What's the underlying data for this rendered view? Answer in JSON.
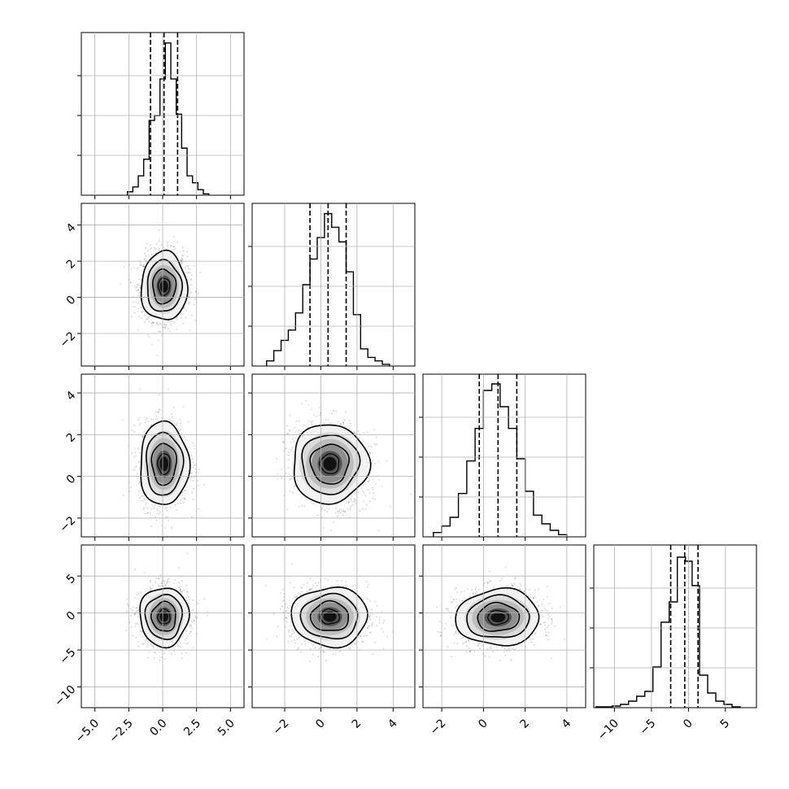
{
  "chart_data": {
    "type": "corner",
    "parameters": 4,
    "grid": true,
    "quantile_lines": "dashed",
    "contour_levels": 3,
    "scatter_color": "#000000",
    "parameter_ranges": [
      [
        -6,
        6
      ],
      [
        -3.8,
        5.2
      ],
      [
        -2.9,
        4.9
      ],
      [
        -12.8,
        9.2
      ]
    ],
    "x_ticks": [
      {
        "values": [
          -5,
          -2.5,
          0,
          2.5,
          5
        ],
        "labels": [
          "−5.0",
          "−2.5",
          "0.0",
          "2.5",
          "5.0"
        ]
      },
      {
        "values": [
          -2,
          0,
          2,
          4
        ],
        "labels": [
          "−2",
          "0",
          "2",
          "4"
        ]
      },
      {
        "values": [
          -2,
          0,
          2,
          4
        ],
        "labels": [
          "−2",
          "0",
          "2",
          "4"
        ]
      },
      {
        "values": [
          -10,
          -5,
          0,
          5
        ],
        "labels": [
          "−10",
          "−5",
          "0",
          "5"
        ]
      }
    ],
    "y_ticks": [
      null,
      {
        "values": [
          -2,
          0,
          2,
          4
        ],
        "labels": [
          "−2",
          "0",
          "2",
          "4"
        ]
      },
      {
        "values": [
          -2,
          0,
          2,
          4
        ],
        "labels": [
          "−2",
          "0",
          "2",
          "4"
        ]
      },
      {
        "values": [
          -10,
          -5,
          0,
          5
        ],
        "labels": [
          "−10",
          "−5",
          "0",
          "5"
        ]
      }
    ],
    "medians": [
      0.1,
      0.4,
      0.7,
      -0.5
    ],
    "quantiles_16_84": [
      [
        -0.9,
        1.1
      ],
      [
        -0.6,
        1.4
      ],
      [
        -0.2,
        1.6
      ],
      [
        -2.4,
        1.3
      ]
    ],
    "histograms": [
      {
        "edges": [
          -2.6,
          -2.2,
          -1.8,
          -1.4,
          -1.0,
          -0.6,
          -0.2,
          0.2,
          0.6,
          1.0,
          1.4,
          1.8,
          2.2,
          2.6,
          3.0,
          3.4
        ],
        "counts": [
          5,
          12,
          28,
          52,
          108,
          115,
          168,
          220,
          168,
          117,
          68,
          28,
          18,
          8,
          2
        ],
        "ymax": 235
      },
      {
        "edges": [
          -3.0,
          -2.6,
          -2.2,
          -1.8,
          -1.4,
          -1.0,
          -0.6,
          -0.2,
          0.2,
          0.6,
          1.0,
          1.4,
          1.8,
          2.2,
          2.6,
          3.0,
          3.4,
          3.8
        ],
        "counts": [
          6,
          18,
          30,
          42,
          62,
          95,
          125,
          150,
          178,
          162,
          145,
          110,
          60,
          20,
          10,
          6,
          2
        ],
        "ymax": 190
      },
      {
        "edges": [
          -2.4,
          -2.0,
          -1.6,
          -1.2,
          -0.8,
          -0.4,
          0.0,
          0.4,
          0.8,
          1.2,
          1.6,
          2.0,
          2.4,
          2.8,
          3.2,
          3.6,
          4.0
        ],
        "counts": [
          4,
          10,
          18,
          40,
          70,
          100,
          135,
          141,
          120,
          100,
          72,
          42,
          20,
          12,
          6,
          2
        ],
        "ymax": 150
      },
      {
        "edges": [
          -12.5,
          -11.4,
          -10.3,
          -9.2,
          -8.1,
          -7.0,
          -5.9,
          -4.8,
          -3.7,
          -2.6,
          -1.5,
          -0.4,
          0.5,
          1.5,
          2.6,
          3.7,
          4.8,
          5.9,
          7.0
        ],
        "counts": [
          1,
          1,
          2,
          4,
          8,
          14,
          20,
          50,
          105,
          130,
          185,
          180,
          150,
          40,
          18,
          8,
          4,
          1
        ],
        "ymax": 200
      }
    ],
    "pair_panels": [
      {
        "row": 1,
        "col": 0,
        "center": [
          0.1,
          0.6
        ],
        "sigma": [
          0.85,
          0.95
        ],
        "rho": 0.0
      },
      {
        "row": 2,
        "col": 0,
        "center": [
          0.1,
          0.6
        ],
        "sigma": [
          0.9,
          1.0
        ],
        "rho": 0.0
      },
      {
        "row": 2,
        "col": 1,
        "center": [
          0.5,
          0.6
        ],
        "sigma": [
          1.05,
          0.95
        ],
        "rho": -0.15
      },
      {
        "row": 3,
        "col": 0,
        "center": [
          0.1,
          -0.5
        ],
        "sigma": [
          0.9,
          2.0
        ],
        "rho": 0.0
      },
      {
        "row": 3,
        "col": 1,
        "center": [
          0.5,
          -0.5
        ],
        "sigma": [
          1.05,
          2.0
        ],
        "rho": 0.0
      },
      {
        "row": 3,
        "col": 2,
        "center": [
          0.7,
          -0.6
        ],
        "sigma": [
          1.0,
          1.9
        ],
        "rho": 0.05
      }
    ]
  }
}
